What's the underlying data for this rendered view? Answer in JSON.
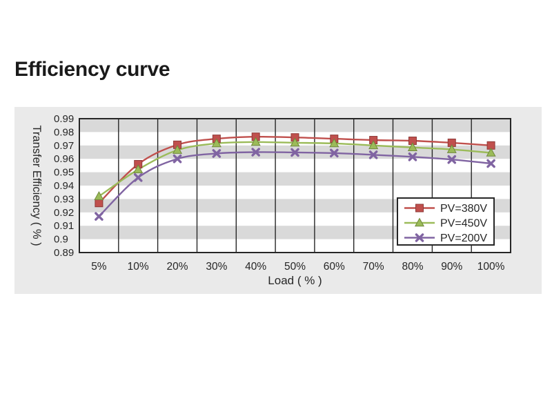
{
  "page": {
    "title": "Efficiency curve"
  },
  "chart_data": {
    "type": "line",
    "title": "Efficiency curve",
    "xlabel": "Load ( % )",
    "ylabel": "Transfer Efficiency ( % )",
    "categories": [
      "5%",
      "10%",
      "20%",
      "30%",
      "40%",
      "50%",
      "60%",
      "70%",
      "80%",
      "90%",
      "100%"
    ],
    "ylim": [
      0.89,
      0.99
    ],
    "ytick_labels": [
      "0.99",
      "0.98",
      "0.97",
      "0.96",
      "0.95",
      "0.94",
      "0.93",
      "0.92",
      "0.91",
      "0.9",
      "0.89"
    ],
    "grid": "vertical-gridlines-with-alternating-horizontal-bands",
    "legend_position": "inside-bottom-right",
    "series": [
      {
        "name": "PV=380V",
        "marker": "square",
        "color": "#C0504D",
        "marker_edge": "#8E3A38",
        "values": [
          0.927,
          0.956,
          0.9705,
          0.975,
          0.9765,
          0.976,
          0.975,
          0.974,
          0.9735,
          0.972,
          0.97
        ]
      },
      {
        "name": "PV=450V",
        "marker": "triangle",
        "color": "#9BBB59",
        "marker_edge": "#70893C",
        "values": [
          0.932,
          0.952,
          0.9665,
          0.9715,
          0.9725,
          0.972,
          0.9715,
          0.97,
          0.9685,
          0.967,
          0.9645
        ]
      },
      {
        "name": "PV=200V",
        "marker": "x",
        "color": "#8064A2",
        "marker_edge": "#5D4877",
        "values": [
          0.917,
          0.946,
          0.96,
          0.964,
          0.965,
          0.9648,
          0.9643,
          0.963,
          0.9615,
          0.9595,
          0.9565
        ]
      }
    ],
    "colors": {
      "panel_bg": "#EAEAEA",
      "plot_bg": "#FFFFFF",
      "band_gray": "#D9D9D9",
      "axis": "#262626",
      "text": "#262626",
      "legend_bg": "#FFFFFF"
    }
  }
}
